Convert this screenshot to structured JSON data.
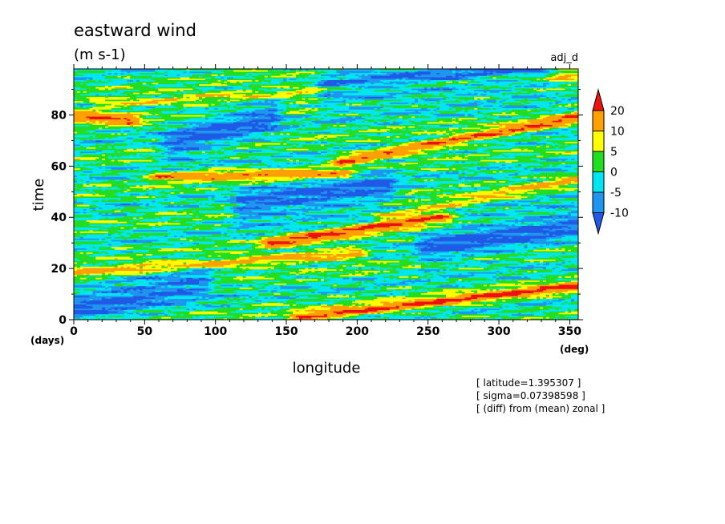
{
  "chart_data": {
    "type": "heatmap",
    "title": "eastward wind",
    "units": "(m s-1)",
    "source_label": "adj_d",
    "xlabel": "longitude",
    "ylabel": "time",
    "x_unit": "(deg)",
    "y_unit": "(days)",
    "xlim": [
      0,
      356
    ],
    "ylim": [
      0,
      98
    ],
    "x_ticks": [
      0,
      50,
      100,
      150,
      200,
      250,
      300,
      350
    ],
    "y_ticks": [
      0,
      20,
      40,
      60,
      80
    ],
    "grid": false,
    "colorbar": {
      "position": "right",
      "levels": [
        -10,
        -5,
        0,
        5,
        10,
        20
      ],
      "level_labels": [
        "-10",
        "-5",
        "0",
        "5",
        "10",
        "20"
      ],
      "colors": [
        "#1e5ae6",
        "#1e96f0",
        "#00e6f0",
        "#22dd22",
        "#ffff00",
        "#ffa000",
        "#ee1111"
      ]
    },
    "annotations": [
      "[ latitude=1.395307 ]",
      "[ sigma=0.07398598 ]",
      "[ (diff) from (mean) zonal ]"
    ],
    "features": [
      {
        "kind": "positive-streak",
        "value": 20,
        "lon": [
          0,
          40
        ],
        "time": [
          80,
          78
        ]
      },
      {
        "kind": "positive-streak",
        "value": 15,
        "lon": [
          60,
          190
        ],
        "time": [
          56,
          57
        ]
      },
      {
        "kind": "positive-streak",
        "value": 20,
        "lon": [
          190,
          356
        ],
        "time": [
          62,
          79
        ]
      },
      {
        "kind": "positive-streak",
        "value": 20,
        "lon": [
          140,
          260
        ],
        "time": [
          30,
          40
        ]
      },
      {
        "kind": "positive-streak",
        "value": 15,
        "lon": [
          0,
          200
        ],
        "time": [
          18,
          26
        ]
      },
      {
        "kind": "positive-streak",
        "value": 20,
        "lon": [
          160,
          356
        ],
        "time": [
          1,
          13
        ]
      },
      {
        "kind": "positive-streak",
        "value": 10,
        "lon": [
          20,
          356
        ],
        "time": [
          84,
          96
        ]
      },
      {
        "kind": "positive-streak",
        "value": 10,
        "lon": [
          220,
          356
        ],
        "time": [
          40,
          55
        ]
      },
      {
        "kind": "negative-patch",
        "value": -10,
        "lon": [
          70,
          140
        ],
        "time": [
          68,
          80
        ]
      },
      {
        "kind": "negative-patch",
        "value": -10,
        "lon": [
          180,
          330
        ],
        "time": [
          90,
          97
        ]
      },
      {
        "kind": "negative-patch",
        "value": -10,
        "lon": [
          250,
          356
        ],
        "time": [
          28,
          38
        ]
      },
      {
        "kind": "negative-patch",
        "value": -10,
        "lon": [
          0,
          90
        ],
        "time": [
          5,
          15
        ]
      },
      {
        "kind": "negative-patch",
        "value": -10,
        "lon": [
          120,
          220
        ],
        "time": [
          44,
          52
        ]
      }
    ]
  }
}
